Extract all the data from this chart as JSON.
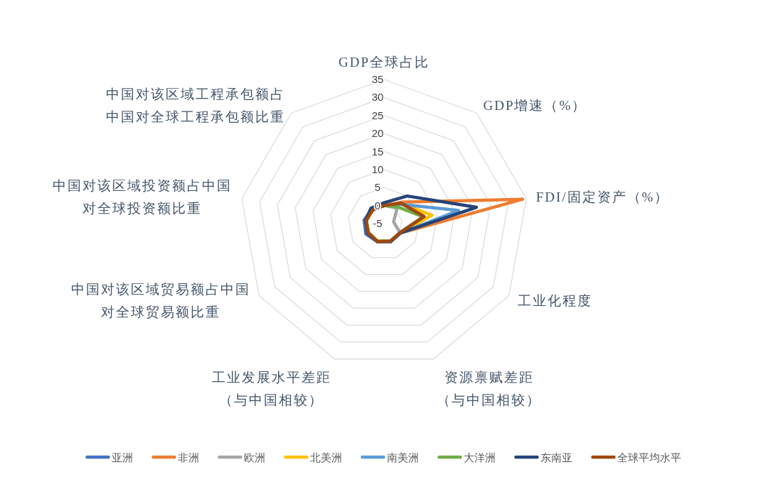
{
  "chart_data": {
    "type": "radar",
    "categories": [
      "GDP全球占比",
      "GDP增速（%）",
      "FDI/固定资产（%）",
      "工业化程度",
      "资源禀赋差距（与中国相较）",
      "工业发展水平差距（与中国相较）",
      "中国对该区域贸易额占中国对全球贸易额比重",
      "中国对该区域投资额占中国对全球投资额比重",
      "中国对该区域工程承包额占中国对全球工程承包额比重"
    ],
    "series": [
      {
        "name": "亚洲",
        "color": "#4472c4",
        "values": [
          0.2,
          2.4,
          6.2,
          0.1,
          0.3,
          0.4,
          0.8,
          0.6,
          0.2
        ]
      },
      {
        "name": "非洲",
        "color": "#ed7d31",
        "values": [
          0,
          2.8,
          34,
          0.3,
          0.2,
          0.2,
          0,
          0,
          0
        ]
      },
      {
        "name": "欧洲",
        "color": "#a5a5a5",
        "values": [
          0,
          0.7,
          -2.3,
          0.2,
          0.2,
          0.3,
          0,
          0,
          0
        ]
      },
      {
        "name": "北美洲",
        "color": "#ffc000",
        "values": [
          0.2,
          2.3,
          8.5,
          0.2,
          0.2,
          0.2,
          0,
          0,
          0
        ]
      },
      {
        "name": "南美洲",
        "color": "#5b9bd5",
        "values": [
          0,
          2,
          16,
          0.3,
          0.4,
          0.4,
          0.1,
          0,
          0
        ]
      },
      {
        "name": "大洋洲",
        "color": "#70ad47",
        "values": [
          0,
          1,
          6,
          0.1,
          0.2,
          0.2,
          0,
          0,
          0
        ]
      },
      {
        "name": "东南亚",
        "color": "#264478",
        "values": [
          0.8,
          5,
          21,
          0.2,
          0.3,
          0.3,
          0.3,
          0.2,
          0.6
        ]
      },
      {
        "name": "全球平均水平",
        "color": "#9e480e",
        "values": [
          0,
          2.4,
          6.3,
          0.1,
          0.2,
          0.3,
          0.1,
          0,
          -0.1
        ]
      }
    ],
    "ylim": [
      -5,
      35
    ],
    "yticks": [
      -5,
      0,
      5,
      10,
      15,
      20,
      25,
      30,
      35
    ],
    "grid": true,
    "legend": "bottom"
  }
}
